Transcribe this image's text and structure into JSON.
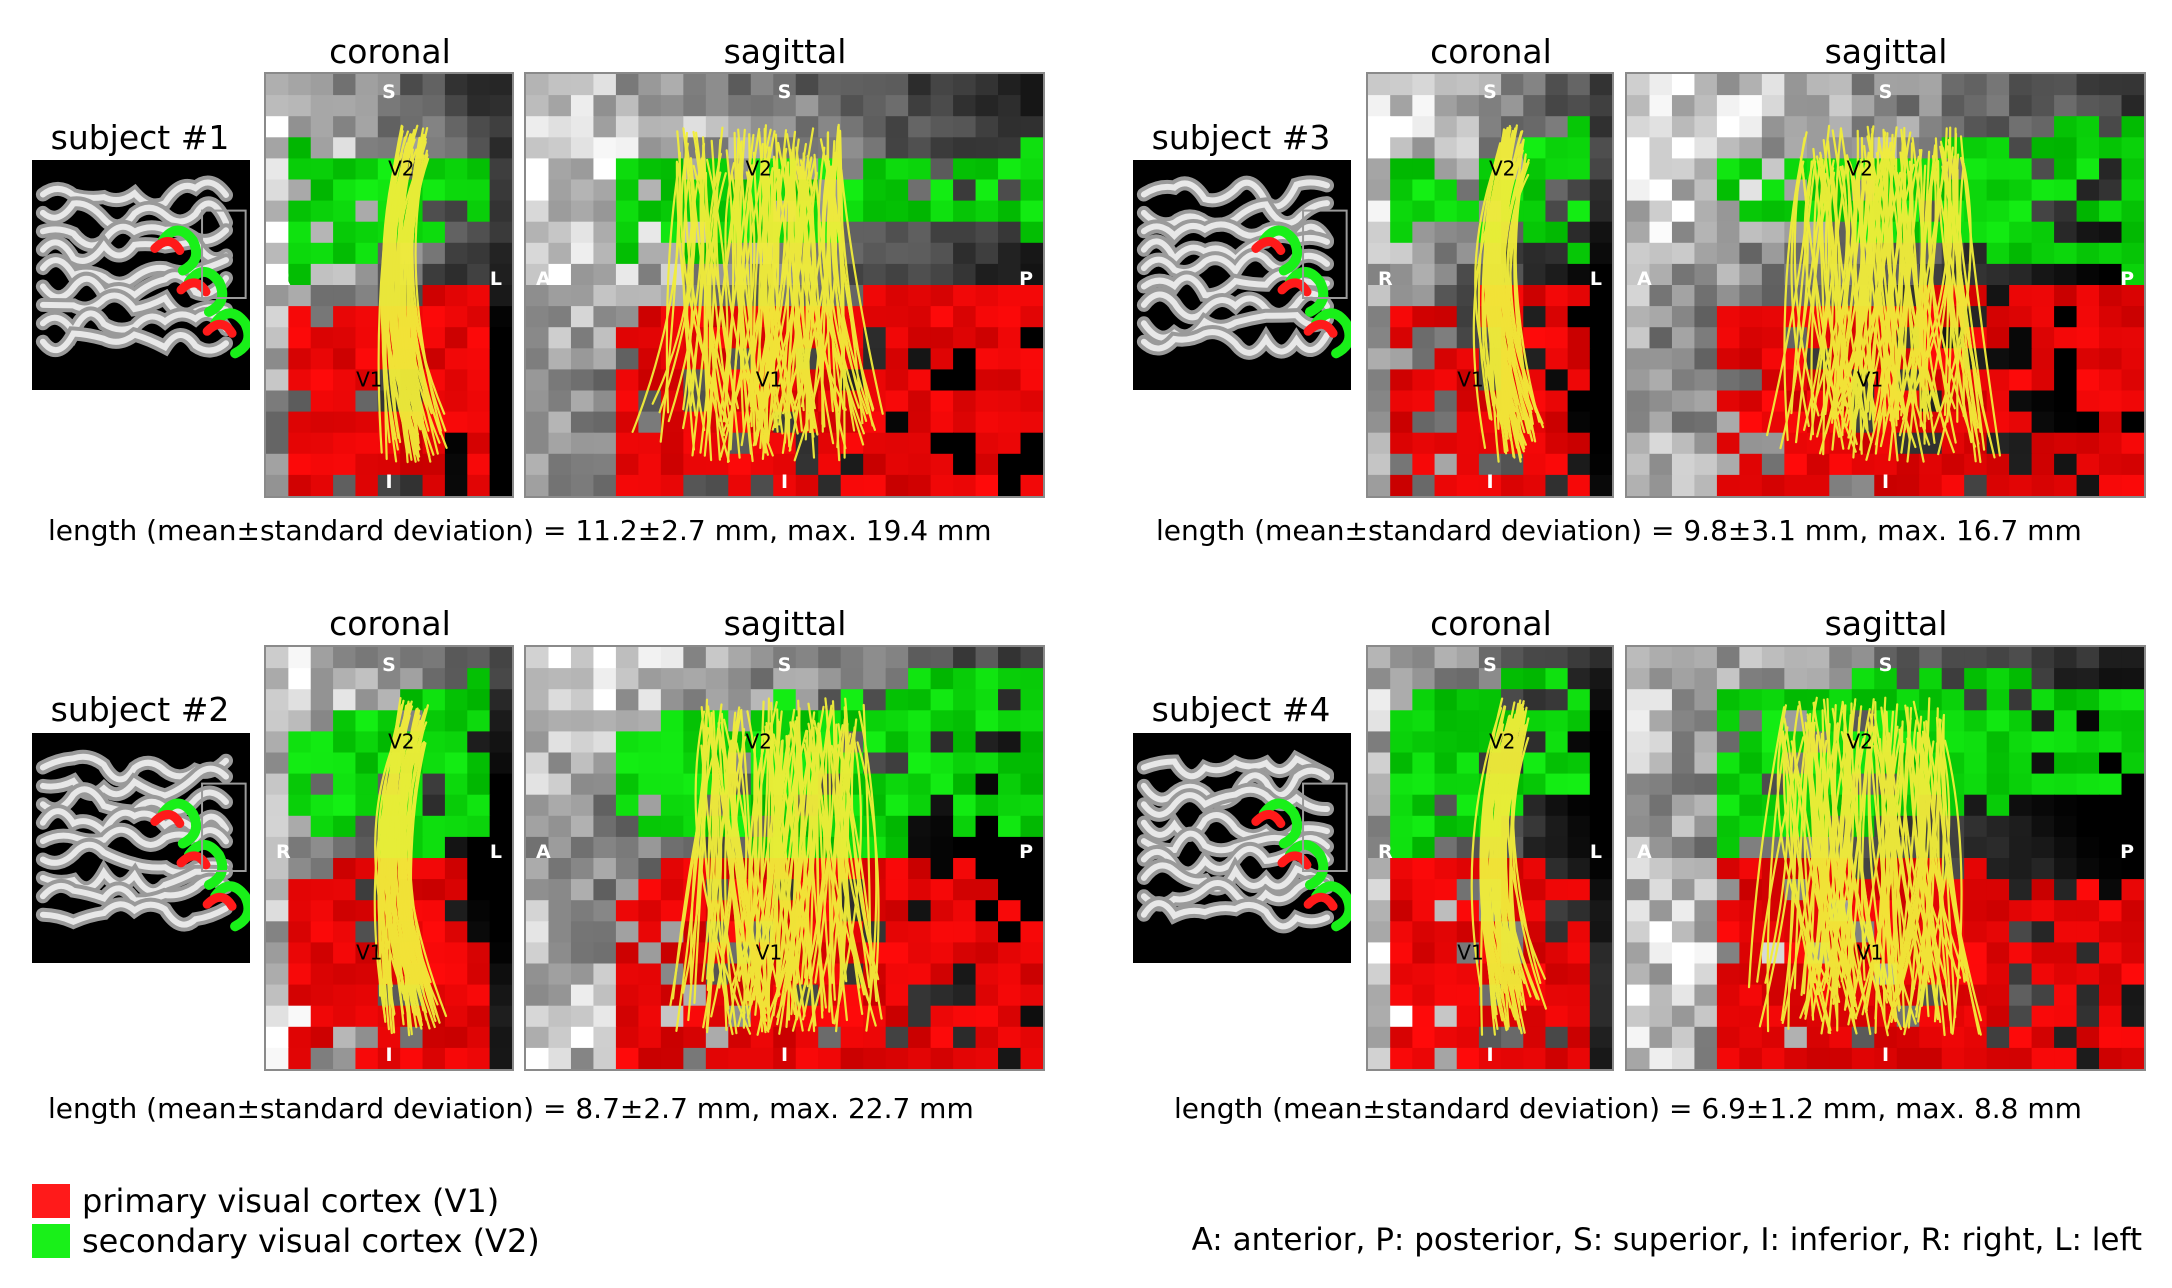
{
  "colors": {
    "v1": "#ff1a1a",
    "v2": "#19f019",
    "fiber": "#f2ee3a",
    "frame": "#8a8a8a"
  },
  "views": {
    "coronal": "coronal",
    "sagittal": "sagittal"
  },
  "orientation_labels": {
    "coronal": {
      "top": "S",
      "bottom": "I",
      "left": "R",
      "right": "L"
    },
    "sagittal": {
      "top": "S",
      "bottom": "I",
      "left": "A",
      "right": "P"
    }
  },
  "region_labels": {
    "v1": "V1",
    "v2": "V2"
  },
  "subjects": [
    {
      "label": "subject #1",
      "caption": "length (mean±standard deviation) = 11.2±2.7 mm, max. 19.4 mm",
      "seed": 11
    },
    {
      "label": "subject #3",
      "caption": "length (mean±standard deviation) = 9.8±3.1 mm, max. 16.7 mm",
      "seed": 23
    },
    {
      "label": "subject #2",
      "caption": "length (mean±standard deviation) = 8.7±2.7 mm, max. 22.7 mm",
      "seed": 37
    },
    {
      "label": "subject #4",
      "caption": "length (mean±standard deviation) = 6.9±1.2 mm, max. 8.8 mm",
      "seed": 53
    }
  ],
  "legend": {
    "v1": {
      "label": "primary visual cortex (V1)",
      "color": "#ff1a1a"
    },
    "v2": {
      "label": "secondary visual cortex (V2)",
      "color": "#19f019"
    }
  },
  "abbreviations": "A: anterior, P: posterior, S: superior, I: inferior, R: right, L: left"
}
